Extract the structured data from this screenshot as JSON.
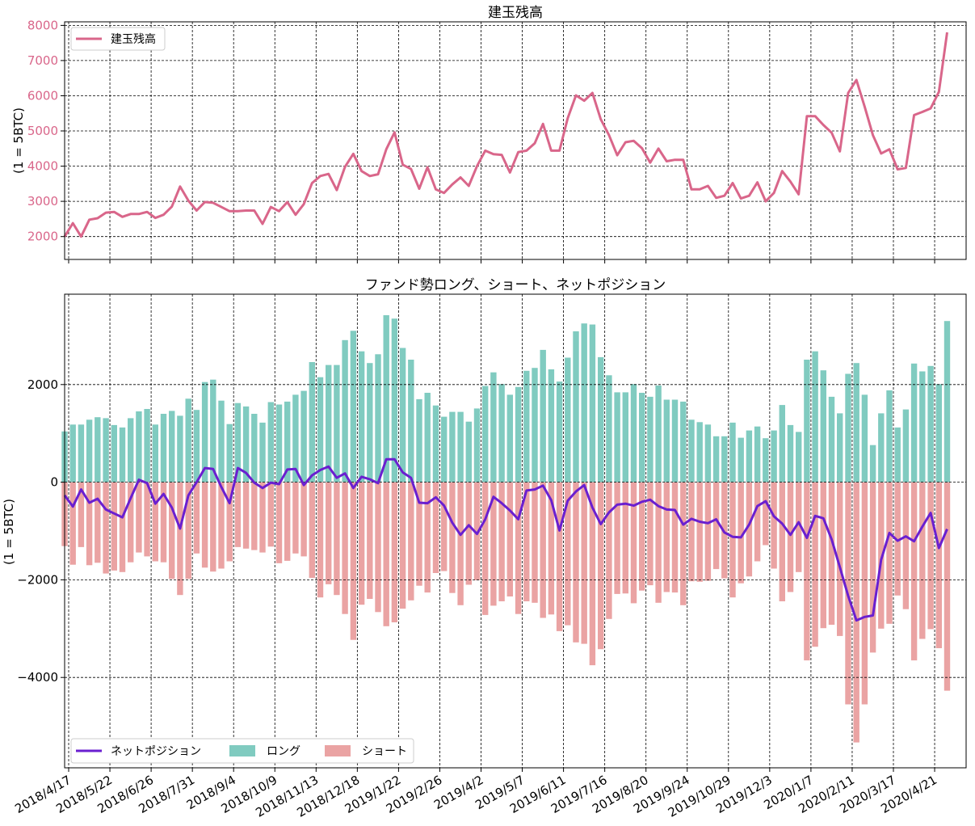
{
  "chart_data": [
    {
      "type": "line",
      "title": "建玉残高",
      "ylabel": "(1 = 5BTC)",
      "xlabel": "",
      "ylim": [
        1350,
        8100
      ],
      "yticks": [
        2000,
        3000,
        4000,
        5000,
        6000,
        7000,
        8000
      ],
      "tick_color": "#d9668a",
      "grid": true,
      "legend": {
        "position": "top-left",
        "entries": [
          "建玉残高"
        ]
      },
      "series": [
        {
          "name": "建玉残高",
          "color": "#d9668a",
          "values": [
            2000,
            2380,
            2000,
            2480,
            2520,
            2680,
            2700,
            2560,
            2640,
            2640,
            2700,
            2530,
            2620,
            2850,
            3420,
            3020,
            2740,
            2980,
            2960,
            2840,
            2720,
            2720,
            2740,
            2740,
            2360,
            2840,
            2720,
            2980,
            2620,
            2920,
            3520,
            3720,
            3780,
            3320,
            3980,
            4350,
            3860,
            3720,
            3770,
            4480,
            4960,
            4040,
            3920,
            3360,
            3970,
            3340,
            3240,
            3480,
            3680,
            3440,
            4000,
            4440,
            4340,
            4320,
            3820,
            4400,
            4440,
            4650,
            5200,
            4440,
            4440,
            5360,
            6010,
            5860,
            6080,
            5330,
            4880,
            4310,
            4680,
            4720,
            4510,
            4100,
            4500,
            4140,
            4180,
            4180,
            3340,
            3340,
            3440,
            3100,
            3160,
            3520,
            3080,
            3160,
            3540,
            3000,
            3240,
            3860,
            3560,
            3200,
            5420,
            5420,
            5170,
            4950,
            4420,
            6080,
            6450,
            5690,
            4880,
            4360,
            4480,
            3910,
            3950,
            5450,
            5540,
            5640,
            6110,
            7800
          ]
        }
      ]
    },
    {
      "type": "bar",
      "title": "ファンド勢ロング、ショート、ネットポジション",
      "ylabel": "(1 = 5BTC)",
      "xlabel": "",
      "ylim": [
        -5850,
        3850
      ],
      "yticks": [
        -4000,
        -2000,
        0,
        2000
      ],
      "grid": true,
      "legend": {
        "position": "bottom-left",
        "entries": [
          "ネットポジション",
          "ロング",
          "ショート"
        ]
      },
      "series": [
        {
          "name": "ロング",
          "color": "#80cbc0",
          "values": [
            1040,
            1180,
            1180,
            1280,
            1330,
            1310,
            1170,
            1120,
            1310,
            1450,
            1500,
            1180,
            1400,
            1460,
            1360,
            1710,
            1480,
            2050,
            2100,
            1670,
            1190,
            1620,
            1550,
            1400,
            1220,
            1640,
            1590,
            1650,
            1790,
            1870,
            2460,
            2150,
            2400,
            2400,
            2910,
            3100,
            2680,
            2440,
            2620,
            3420,
            3350,
            2750,
            2510,
            1700,
            1830,
            1570,
            1340,
            1440,
            1440,
            1240,
            1510,
            1970,
            2250,
            2010,
            1790,
            1950,
            2280,
            2340,
            2710,
            2310,
            2060,
            2550,
            3090,
            3250,
            3230,
            2560,
            2190,
            1840,
            1840,
            2010,
            1830,
            1750,
            1980,
            1690,
            1690,
            1650,
            1280,
            1230,
            1180,
            940,
            940,
            1220,
            910,
            1060,
            1140,
            900,
            1060,
            1580,
            1170,
            1030,
            2510,
            2680,
            2290,
            1750,
            1410,
            2220,
            2440,
            1790,
            760,
            1410,
            1880,
            1120,
            1490,
            2430,
            2270,
            2380,
            2010,
            3300
          ]
        },
        {
          "name": "ショート",
          "color": "#eaa3a3",
          "values": [
            -1310,
            -1690,
            -1330,
            -1700,
            -1650,
            -1870,
            -1810,
            -1840,
            -1640,
            -1440,
            -1520,
            -1620,
            -1640,
            -1980,
            -2310,
            -1980,
            -1460,
            -1750,
            -1830,
            -1770,
            -1620,
            -1330,
            -1360,
            -1390,
            -1440,
            -1320,
            -1660,
            -1610,
            -1460,
            -1520,
            -1960,
            -2360,
            -2090,
            -2310,
            -2700,
            -3230,
            -2510,
            -2390,
            -2660,
            -2950,
            -2870,
            -2590,
            -2420,
            -2120,
            -2260,
            -1860,
            -1820,
            -2270,
            -2520,
            -2100,
            -2010,
            -2720,
            -2530,
            -2440,
            -2340,
            -2700,
            -2440,
            -2470,
            -2780,
            -2710,
            -3050,
            -2930,
            -3280,
            -3310,
            -3750,
            -3420,
            -2800,
            -2290,
            -2280,
            -2480,
            -2220,
            -2110,
            -2470,
            -2250,
            -2260,
            -2520,
            -2030,
            -2040,
            -2020,
            -1780,
            -1970,
            -2360,
            -2070,
            -1930,
            -1620,
            -1290,
            -1770,
            -2440,
            -2250,
            -1840,
            -3650,
            -3370,
            -2990,
            -2920,
            -3150,
            -4550,
            -5330,
            -4550,
            -3490,
            -3000,
            -2900,
            -2320,
            -2600,
            -3650,
            -3210,
            -3010,
            -3400,
            -4270
          ]
        },
        {
          "name": "ネットポジション",
          "color": "#6a1fd0",
          "values": [
            -270,
            -500,
            -150,
            -420,
            -340,
            -560,
            -640,
            -720,
            -330,
            50,
            -20,
            -440,
            -240,
            -520,
            -950,
            -270,
            0,
            290,
            270,
            -100,
            -430,
            290,
            190,
            -10,
            -120,
            -10,
            -40,
            260,
            270,
            -60,
            140,
            250,
            320,
            90,
            180,
            -120,
            110,
            60,
            -20,
            470,
            470,
            200,
            90,
            -420,
            -430,
            -310,
            -480,
            -830,
            -1080,
            -880,
            -1060,
            -760,
            -300,
            -430,
            -580,
            -760,
            -170,
            -150,
            -70,
            -370,
            -990,
            -380,
            -190,
            -60,
            -520,
            -860,
            -620,
            -460,
            -440,
            -480,
            -400,
            -360,
            -490,
            -560,
            -570,
            -870,
            -750,
            -810,
            -840,
            -760,
            -1030,
            -1120,
            -1130,
            -870,
            -490,
            -390,
            -700,
            -850,
            -1080,
            -820,
            -1140,
            -690,
            -740,
            -1170,
            -1740,
            -2330,
            -2830,
            -2760,
            -2730,
            -1590,
            -1040,
            -1200,
            -1110,
            -1210,
            -910,
            -630,
            -1350,
            -960
          ]
        }
      ],
      "x_tick_labels": [
        "2018/4/17",
        "2018/5/22",
        "2018/6/26",
        "2018/7/31",
        "2018/9/4",
        "2018/10/9",
        "2018/11/13",
        "2018/12/18",
        "2019/1/22",
        "2019/2/26",
        "2019/4/2",
        "2019/5/7",
        "2019/6/11",
        "2019/7/16",
        "2019/8/20",
        "2019/9/24",
        "2019/10/29",
        "2019/12/3",
        "2020/1/7",
        "2020/2/11",
        "2020/3/17",
        "2020/4/21"
      ]
    }
  ]
}
